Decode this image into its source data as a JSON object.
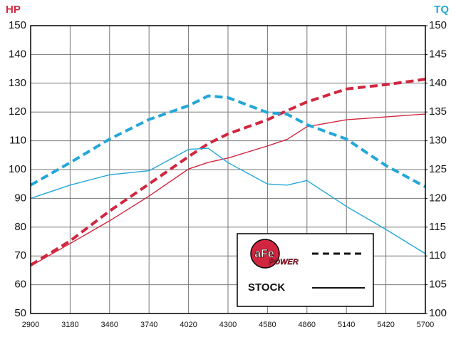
{
  "chart_data": {
    "type": "line",
    "y_axis_label": "HP",
    "y2_axis_label": "TQ",
    "x": [
      2900,
      3180,
      3460,
      3740,
      4020,
      4160,
      4300,
      4580,
      4720,
      4860,
      5140,
      5420,
      5700
    ],
    "series": [
      {
        "color": "#d1263f",
        "style": "dashed",
        "values": [
          66.8,
          75.2,
          85.6,
          95,
          104.5,
          109,
          112.4,
          117.3,
          120.5,
          123.5,
          128,
          129.5,
          131.4
        ]
      },
      {
        "color": "#d1263f",
        "style": "solid",
        "values": [
          66.5,
          74.3,
          82.2,
          90.8,
          100.2,
          102.5,
          104,
          108.2,
          110.5,
          114.9,
          117.3,
          118.3,
          119.3
        ]
      },
      {
        "color": "#23a7d8",
        "style": "dashed",
        "axis": "y2",
        "values": [
          122.3,
          126.2,
          130.3,
          133.7,
          136.1,
          137.8,
          137.5,
          134.9,
          134.6,
          132.8,
          130.3,
          125.7,
          122
        ]
      },
      {
        "color": "#23a7d8",
        "style": "solid",
        "axis": "y2",
        "values": [
          120,
          122.3,
          124.1,
          124.8,
          128.5,
          128.7,
          126.2,
          122.5,
          122.3,
          123.1,
          118.6,
          114.6,
          110.4
        ]
      }
    ],
    "xlim": [
      2900,
      5700
    ],
    "xticks": [
      2900,
      3180,
      3460,
      3740,
      4020,
      4300,
      4580,
      4860,
      5140,
      5420,
      5700
    ],
    "ylim": [
      50,
      150
    ],
    "yticks": [
      50,
      60,
      70,
      80,
      90,
      100,
      110,
      120,
      130,
      140,
      150
    ],
    "y2lim": [
      100,
      150
    ],
    "y2ticks": [
      100,
      105,
      110,
      115,
      120,
      125,
      130,
      135,
      140,
      145,
      150
    ],
    "grid": true,
    "legend": [
      {
        "logo": "aFe",
        "logo_sub": "POWER",
        "style": "dashed"
      },
      {
        "label": "STOCK",
        "style": "solid"
      }
    ]
  }
}
